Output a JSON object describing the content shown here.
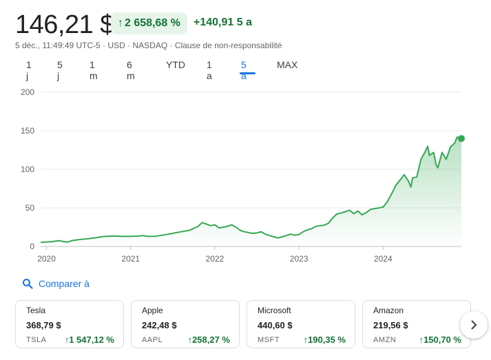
{
  "header": {
    "price": "146,21 $",
    "change_pct": "2 658,68 %",
    "change_abs": "+140,91",
    "change_period": "5 a",
    "meta": "5 déc., 11:49:49 UTC-5 · USD · NASDAQ · Clause de non-responsabilité"
  },
  "ranges": [
    "1 j",
    "5 j",
    "1 m",
    "6 m",
    "YTD",
    "1 a",
    "5 a",
    "MAX"
  ],
  "active_range": "5 a",
  "colors": {
    "line": "#34a853",
    "up": "#137333",
    "link": "#1a73e8"
  },
  "compare": {
    "label": "Comparer à",
    "icon": "search-icon"
  },
  "cards": [
    {
      "name": "Tesla",
      "price": "368,79 $",
      "ticker": "TSLA",
      "change": "1 547,12 %"
    },
    {
      "name": "Apple",
      "price": "242,48 $",
      "ticker": "AAPL",
      "change": "258,27 %"
    },
    {
      "name": "Microsoft",
      "price": "440,60 $",
      "ticker": "MSFT",
      "change": "190,35 %"
    },
    {
      "name": "Amazon",
      "price": "219,56 $",
      "ticker": "AMZN",
      "change": "150,70 %"
    }
  ],
  "chart_data": {
    "type": "area",
    "title": "",
    "xlabel": "",
    "ylabel": "",
    "ylim": [
      0,
      200
    ],
    "yticks": [
      0,
      50,
      100,
      150,
      200
    ],
    "xticks": [
      {
        "label": "2020",
        "x": 2020.0
      },
      {
        "label": "2021",
        "x": 2021.0
      },
      {
        "label": "2022",
        "x": 2022.0
      },
      {
        "label": "2023",
        "x": 2023.0
      },
      {
        "label": "2024",
        "x": 2024.0
      }
    ],
    "xlim": [
      2019.93,
      2024.93
    ],
    "grid": true,
    "series": [
      {
        "x": [
          2019.93,
          2020.05,
          2020.15,
          2020.2,
          2020.25,
          2020.3,
          2020.4,
          2020.5,
          2020.6,
          2020.65,
          2020.7,
          2020.8,
          2020.9,
          2021.0,
          2021.1,
          2021.15,
          2021.2,
          2021.3,
          2021.4,
          2021.5,
          2021.6,
          2021.7,
          2021.8,
          2021.85,
          2021.9,
          2021.95,
          2022.0,
          2022.05,
          2022.1,
          2022.15,
          2022.2,
          2022.25,
          2022.3,
          2022.35,
          2022.4,
          2022.45,
          2022.5,
          2022.55,
          2022.6,
          2022.65,
          2022.7,
          2022.75,
          2022.8,
          2022.85,
          2022.9,
          2022.95,
          2023.0,
          2023.05,
          2023.1,
          2023.15,
          2023.2,
          2023.25,
          2023.3,
          2023.35,
          2023.4,
          2023.45,
          2023.5,
          2023.55,
          2023.6,
          2023.65,
          2023.7,
          2023.75,
          2023.8,
          2023.85,
          2023.9,
          2023.95,
          2024.0,
          2024.05,
          2024.1,
          2024.15,
          2024.2,
          2024.25,
          2024.3,
          2024.33,
          2024.35,
          2024.4,
          2024.45,
          2024.5,
          2024.53,
          2024.55,
          2024.6,
          2024.63,
          2024.65,
          2024.7,
          2024.75,
          2024.8,
          2024.85,
          2024.88,
          2024.9,
          2024.93
        ],
        "y": [
          5.3,
          6,
          7.5,
          6.3,
          5.5,
          7.5,
          9,
          10,
          11.5,
          12.5,
          13,
          13.5,
          13,
          13,
          13.5,
          14,
          13,
          13.2,
          15,
          17,
          19,
          21,
          26,
          31,
          29,
          27,
          28,
          24,
          25,
          26,
          28,
          25,
          21,
          19,
          18,
          17,
          17.5,
          19,
          16,
          14,
          12.5,
          11,
          12.5,
          14,
          16,
          14.5,
          15.5,
          19,
          21.5,
          23,
          26,
          27,
          27.5,
          30,
          37,
          42,
          43.5,
          45,
          47,
          42.5,
          46,
          41,
          44,
          48,
          49,
          50,
          51,
          58,
          68,
          79,
          86,
          93,
          85,
          77,
          89,
          90,
          113,
          123,
          130,
          118,
          122,
          106,
          102,
          122,
          113,
          129,
          134,
          142,
          141,
          140
        ]
      }
    ]
  }
}
